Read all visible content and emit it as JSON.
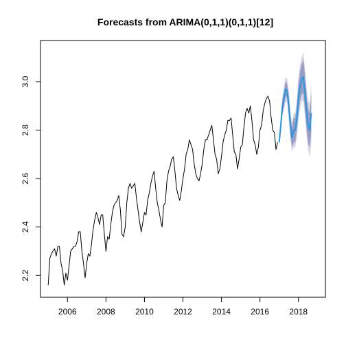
{
  "chart_data": {
    "type": "line",
    "title": "Forecasts from ARIMA(0,1,1)(0,1,1)[12]",
    "xlabel": "",
    "ylabel": "",
    "xlim": [
      2004.6,
      2019.4
    ],
    "ylim": [
      2.11,
      3.17
    ],
    "x_ticks": [
      2006,
      2008,
      2010,
      2012,
      2014,
      2016,
      2018
    ],
    "x_tick_labels": [
      "2006",
      "2008",
      "2010",
      "2012",
      "2014",
      "2016",
      "2018"
    ],
    "y_ticks": [
      2.2,
      2.4,
      2.6,
      2.8,
      3.0
    ],
    "y_tick_labels": [
      "2.2",
      "2.4",
      "2.6",
      "2.8",
      "3.0"
    ],
    "grid": false,
    "legend": "none",
    "colors": {
      "observed": "#000000",
      "forecast": "#2297e6",
      "band80": "#868bb7",
      "band95": "#d2d3e3"
    },
    "series": [
      {
        "role": "observed",
        "start": 2005.0,
        "frequency": 12,
        "values": [
          2.16,
          2.27,
          2.29,
          2.3,
          2.31,
          2.28,
          2.32,
          2.32,
          2.25,
          2.22,
          2.16,
          2.21,
          2.18,
          2.24,
          2.3,
          2.31,
          2.32,
          2.32,
          2.34,
          2.38,
          2.38,
          2.3,
          2.25,
          2.19,
          2.25,
          2.29,
          2.28,
          2.33,
          2.39,
          2.43,
          2.46,
          2.44,
          2.41,
          2.45,
          2.45,
          2.37,
          2.3,
          2.36,
          2.35,
          2.41,
          2.46,
          2.49,
          2.5,
          2.51,
          2.53,
          2.47,
          2.37,
          2.36,
          2.4,
          2.5,
          2.56,
          2.58,
          2.56,
          2.57,
          2.58,
          2.52,
          2.47,
          2.42,
          2.38,
          2.42,
          2.46,
          2.45,
          2.51,
          2.54,
          2.58,
          2.61,
          2.63,
          2.56,
          2.5,
          2.47,
          2.43,
          2.4,
          2.49,
          2.5,
          2.59,
          2.63,
          2.65,
          2.68,
          2.69,
          2.63,
          2.56,
          2.53,
          2.51,
          2.55,
          2.6,
          2.64,
          2.7,
          2.72,
          2.76,
          2.74,
          2.72,
          2.66,
          2.62,
          2.6,
          2.59,
          2.62,
          2.66,
          2.72,
          2.76,
          2.76,
          2.78,
          2.8,
          2.82,
          2.76,
          2.7,
          2.68,
          2.62,
          2.64,
          2.69,
          2.75,
          2.78,
          2.8,
          2.84,
          2.84,
          2.85,
          2.78,
          2.71,
          2.7,
          2.64,
          2.68,
          2.73,
          2.74,
          2.81,
          2.87,
          2.89,
          2.87,
          2.9,
          2.84,
          2.76,
          2.74,
          2.7,
          2.73,
          2.8,
          2.82,
          2.88,
          2.91,
          2.93,
          2.94,
          2.92,
          2.85,
          2.8,
          2.79,
          2.72,
          2.75
        ]
      },
      {
        "role": "forecast",
        "start": 2017.0,
        "frequency": 12,
        "mean": [
          2.75,
          2.82,
          2.9,
          2.93,
          2.97,
          2.96,
          2.9,
          2.82,
          2.77,
          2.8,
          2.8,
          2.85,
          2.93,
          2.98,
          3.01,
          3.02,
          2.96,
          2.88,
          2.82,
          2.8,
          2.87
        ],
        "lo80": [
          2.74,
          2.8,
          2.87,
          2.9,
          2.94,
          2.93,
          2.86,
          2.78,
          2.73,
          2.75,
          2.75,
          2.8,
          2.87,
          2.92,
          2.95,
          2.95,
          2.89,
          2.81,
          2.75,
          2.73,
          2.79
        ],
        "hi80": [
          2.77,
          2.84,
          2.93,
          2.96,
          3.0,
          2.99,
          2.94,
          2.86,
          2.81,
          2.85,
          2.85,
          2.9,
          2.99,
          3.04,
          3.07,
          3.09,
          3.03,
          2.95,
          2.89,
          2.87,
          2.95
        ],
        "lo95": [
          2.73,
          2.79,
          2.86,
          2.88,
          2.92,
          2.91,
          2.84,
          2.76,
          2.71,
          2.73,
          2.73,
          2.77,
          2.84,
          2.89,
          2.92,
          2.92,
          2.86,
          2.78,
          2.72,
          2.69,
          2.75
        ],
        "hi95": [
          2.77,
          2.85,
          2.94,
          2.98,
          3.02,
          3.01,
          2.96,
          2.88,
          2.83,
          2.87,
          2.87,
          2.93,
          3.02,
          3.07,
          3.1,
          3.12,
          3.06,
          2.98,
          2.92,
          2.91,
          2.99
        ]
      }
    ]
  }
}
